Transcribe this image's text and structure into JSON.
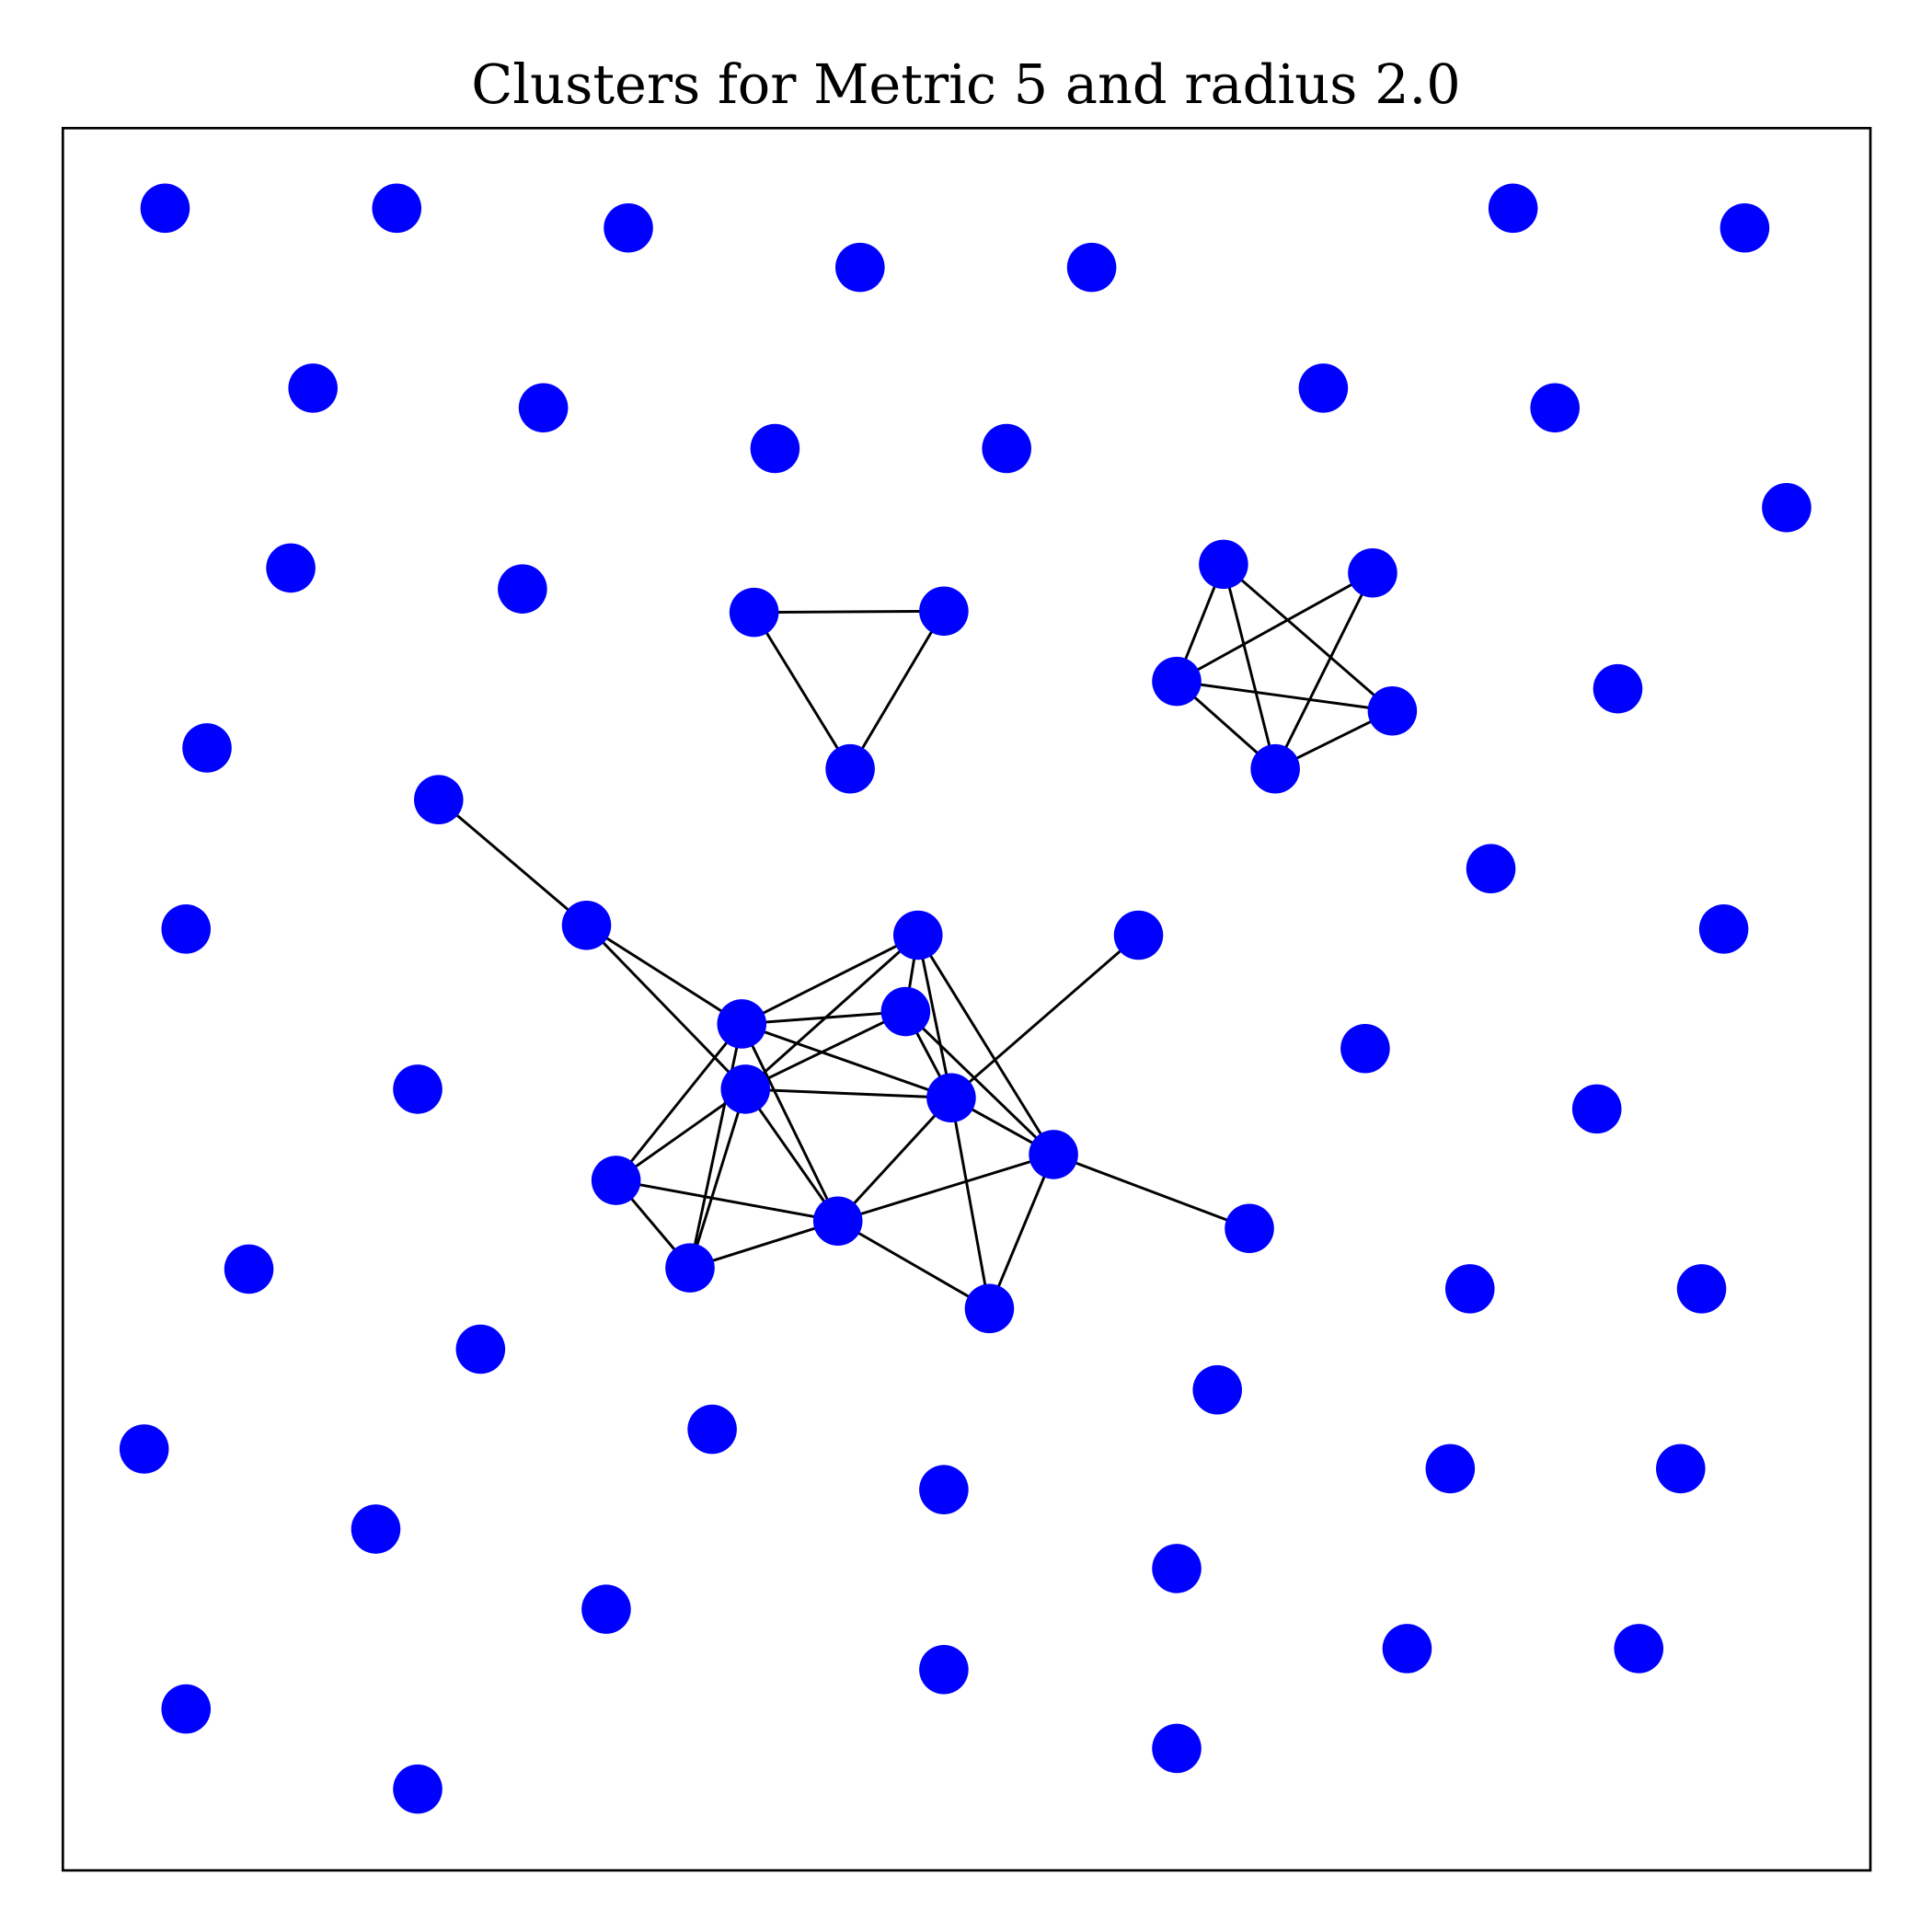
{
  "title": "Clusters for Metric 5 and radius 2.0"
}
